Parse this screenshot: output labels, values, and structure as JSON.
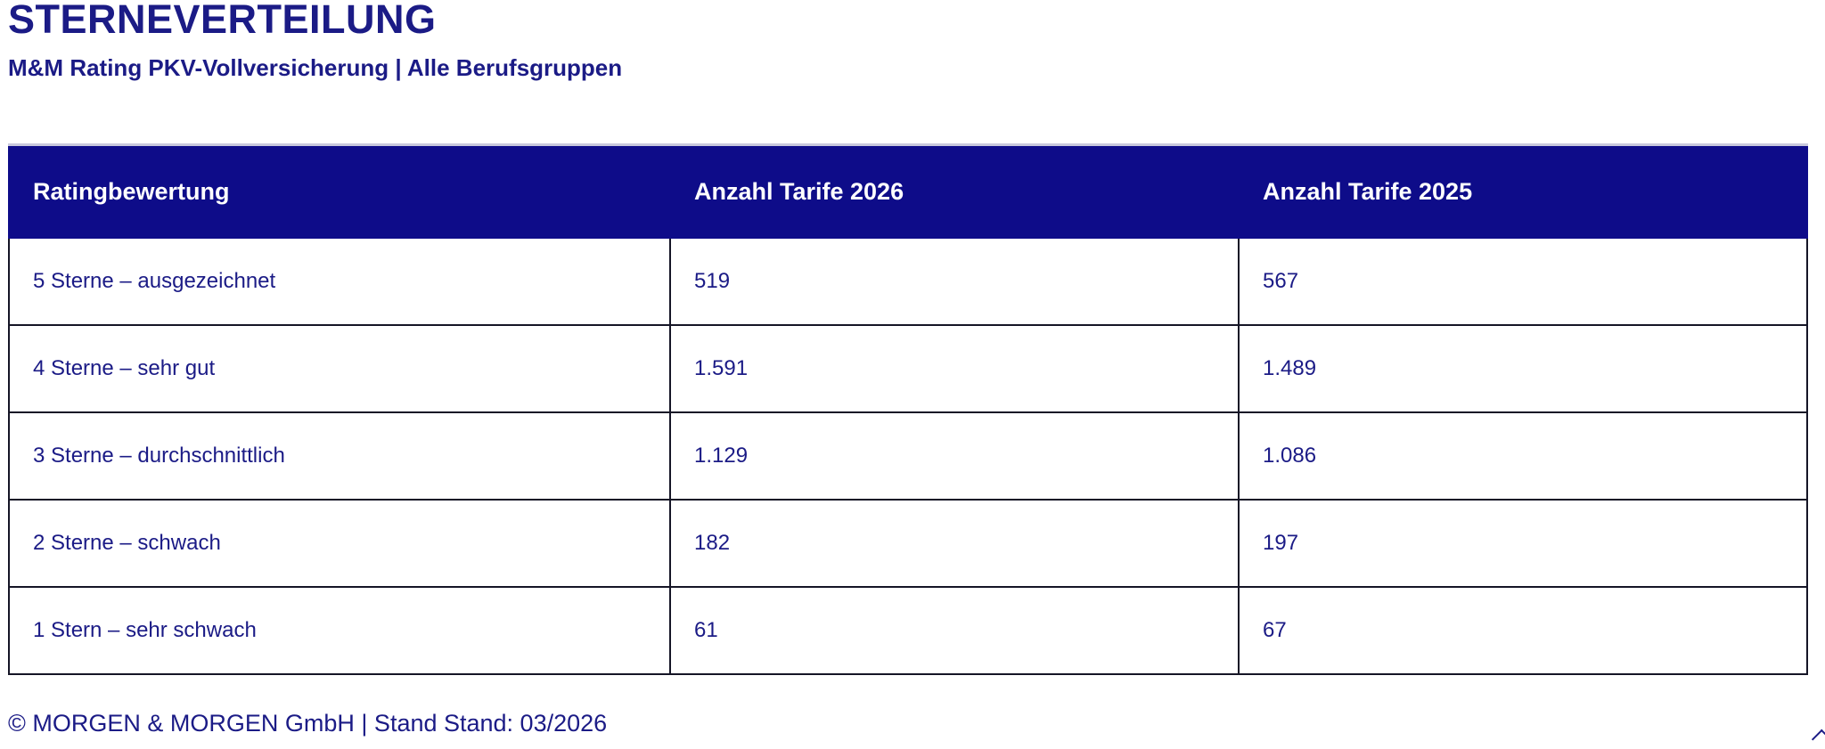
{
  "page": {
    "title": "STERNEVERTEILUNG",
    "subtitle": "M&M Rating PKV-Vollversicherung | Alle Berufsgruppen",
    "footer": "© MORGEN & MORGEN GmbH | Stand Stand: 03/2026"
  },
  "colors": {
    "header_bg": "#0e0c89",
    "text": "#1b1b86",
    "border": "#151526"
  },
  "chart_data": {
    "type": "table",
    "title": "STERNEVERTEILUNG",
    "subtitle": "M&M Rating PKV-Vollversicherung | Alle Berufsgruppen",
    "columns": [
      "Ratingbewertung",
      "Anzahl Tarife 2026",
      "Anzahl Tarife 2025"
    ],
    "rows": [
      [
        "5 Sterne – ausgezeichnet",
        "519",
        "567"
      ],
      [
        "4 Sterne – sehr gut",
        "1.591",
        "1.489"
      ],
      [
        "3 Sterne – durchschnittlich",
        "1.129",
        "1.086"
      ],
      [
        "2 Sterne – schwach",
        "182",
        "197"
      ],
      [
        "1 Stern – sehr schwach",
        "61",
        "67"
      ]
    ],
    "series": [
      {
        "name": "Anzahl Tarife 2026",
        "values": [
          519,
          1591,
          1129,
          182,
          61
        ]
      },
      {
        "name": "Anzahl Tarife 2025",
        "values": [
          567,
          1489,
          1086,
          197,
          67
        ]
      }
    ]
  }
}
